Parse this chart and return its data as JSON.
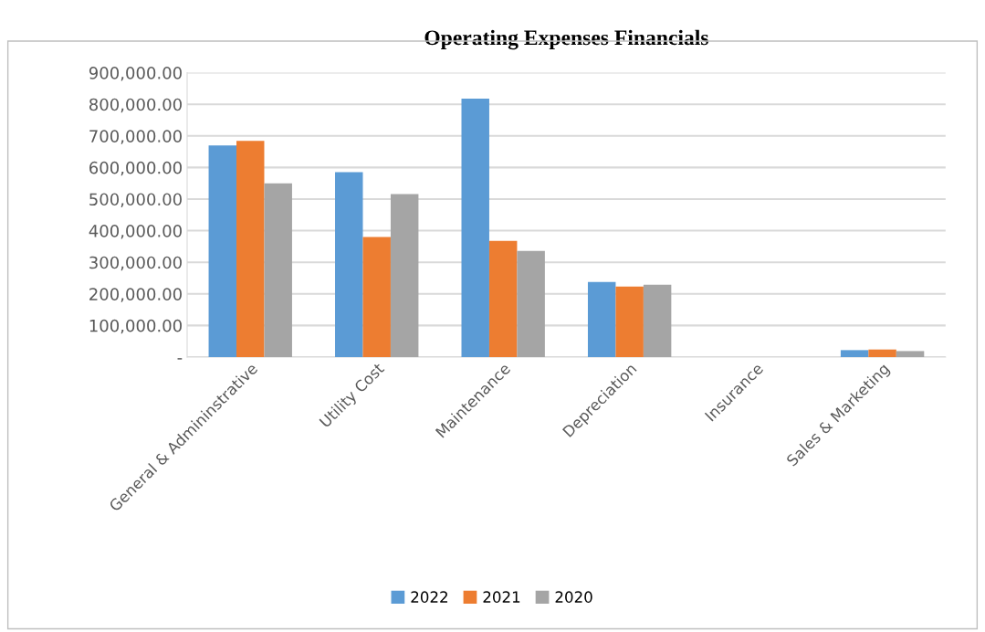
{
  "chart_data": {
    "type": "bar",
    "title": "Operating Expenses Financials",
    "categories": [
      "General & Admininstrative",
      "Utility Cost",
      "Maintenance",
      "Depreciation",
      "Insurance",
      "Sales & Marketing"
    ],
    "series": [
      {
        "name": "2022",
        "color": "#5b9bd5",
        "values": [
          670000,
          585000,
          818000,
          238000,
          0,
          22000
        ]
      },
      {
        "name": "2021",
        "color": "#ed7d31",
        "values": [
          684000,
          380000,
          368000,
          223000,
          0,
          24000
        ]
      },
      {
        "name": "2020",
        "color": "#a5a5a5",
        "values": [
          550000,
          516000,
          336000,
          229000,
          0,
          19000
        ]
      }
    ],
    "ylim": [
      0,
      900000
    ],
    "yticks": [
      {
        "value": 0,
        "label": "-"
      },
      {
        "value": 100000,
        "label": "100,000.00"
      },
      {
        "value": 200000,
        "label": "200,000.00"
      },
      {
        "value": 300000,
        "label": "300,000.00"
      },
      {
        "value": 400000,
        "label": "400,000.00"
      },
      {
        "value": 500000,
        "label": "500,000.00"
      },
      {
        "value": 600000,
        "label": "600,000.00"
      },
      {
        "value": 700000,
        "label": "700,000.00"
      },
      {
        "value": 800000,
        "label": "800,000.00"
      },
      {
        "value": 900000,
        "label": "900,000.00"
      }
    ],
    "grid": "y",
    "legend": "bottom"
  }
}
